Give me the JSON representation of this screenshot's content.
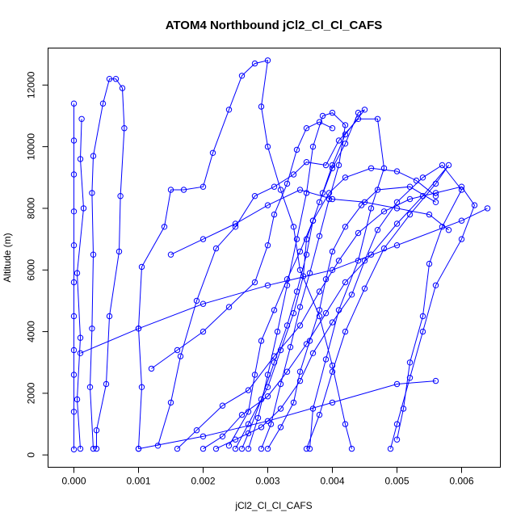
{
  "chart_data": {
    "type": "scatter",
    "title": "ATOM4 Northbound jCl2_Cl_Cl_CAFS",
    "xlabel": "jCl2_Cl_Cl_CAFS",
    "ylabel": "Altitude (m)",
    "xlim": [
      -0.0004,
      0.0066
    ],
    "ylim": [
      -400,
      13200
    ],
    "xticks": [
      0.0,
      0.001,
      0.002,
      0.003,
      0.004,
      0.005,
      0.006
    ],
    "xtick_labels": [
      "0.000",
      "0.001",
      "0.002",
      "0.003",
      "0.004",
      "0.005",
      "0.006"
    ],
    "yticks": [
      0,
      2000,
      4000,
      6000,
      8000,
      10000,
      12000
    ],
    "ytick_labels": [
      "0",
      "2000",
      "4000",
      "6000",
      "8000",
      "10000",
      "12000"
    ],
    "grid": false,
    "color": "#0000ff",
    "series": [
      {
        "points": [
          [
            0.0,
            180
          ],
          [
            0.0,
            1400
          ],
          [
            0.0,
            2600
          ],
          [
            0.0,
            3400
          ],
          [
            0.0,
            4500
          ],
          [
            0.0,
            5600
          ],
          [
            0.0,
            6800
          ],
          [
            0.0,
            7900
          ],
          [
            0.0,
            9100
          ],
          [
            0.0,
            10200
          ],
          [
            0.0,
            11400
          ]
        ]
      },
      {
        "points": [
          [
            0.0001,
            200
          ],
          [
            5e-05,
            1800
          ],
          [
            0.0001,
            3800
          ],
          [
            5e-05,
            5900
          ],
          [
            0.00015,
            8000
          ],
          [
            0.0001,
            9600
          ],
          [
            0.00012,
            10900
          ]
        ]
      },
      {
        "points": [
          [
            0.0003,
            200
          ],
          [
            0.00025,
            2200
          ],
          [
            0.00028,
            4100
          ],
          [
            0.0003,
            6500
          ],
          [
            0.00028,
            8500
          ],
          [
            0.0003,
            9700
          ],
          [
            0.00045,
            11400
          ],
          [
            0.00055,
            12200
          ],
          [
            0.00065,
            12200
          ],
          [
            0.00075,
            11900
          ],
          [
            0.00078,
            10600
          ],
          [
            0.00072,
            8400
          ],
          [
            0.0007,
            6600
          ],
          [
            0.00055,
            4500
          ],
          [
            0.0005,
            2300
          ],
          [
            0.00035,
            800
          ],
          [
            0.00035,
            200
          ]
        ]
      },
      {
        "points": [
          [
            0.001,
            200
          ],
          [
            0.00105,
            2200
          ],
          [
            0.001,
            4100
          ],
          [
            0.00105,
            6100
          ],
          [
            0.0014,
            7400
          ],
          [
            0.0015,
            8600
          ],
          [
            0.0017,
            8600
          ],
          [
            0.002,
            8700
          ],
          [
            0.00215,
            9800
          ],
          [
            0.0024,
            11200
          ],
          [
            0.0026,
            12300
          ],
          [
            0.0028,
            12700
          ],
          [
            0.003,
            12800
          ],
          [
            0.0029,
            11300
          ],
          [
            0.003,
            10000
          ],
          [
            0.0032,
            8600
          ],
          [
            0.0034,
            7400
          ],
          [
            0.0035,
            6000
          ],
          [
            0.0038,
            4500
          ],
          [
            0.004,
            2900
          ],
          [
            0.0042,
            1000
          ],
          [
            0.0043,
            200
          ]
        ]
      },
      {
        "points": [
          [
            0.0013,
            300
          ],
          [
            0.0015,
            1700
          ],
          [
            0.00165,
            3200
          ],
          [
            0.0019,
            5000
          ],
          [
            0.0022,
            6700
          ],
          [
            0.0025,
            7400
          ],
          [
            0.0028,
            8400
          ],
          [
            0.0031,
            8700
          ],
          [
            0.0034,
            9100
          ],
          [
            0.0036,
            9500
          ],
          [
            0.0039,
            9400
          ],
          [
            0.0041,
            10200
          ],
          [
            0.0044,
            10900
          ],
          [
            0.0047,
            10900
          ],
          [
            0.0048,
            9300
          ],
          [
            0.0046,
            8000
          ],
          [
            0.0044,
            6300
          ],
          [
            0.0041,
            4700
          ],
          [
            0.0039,
            3100
          ],
          [
            0.0037,
            1500
          ],
          [
            0.00365,
            200
          ]
        ]
      },
      {
        "points": [
          [
            0.0016,
            200
          ],
          [
            0.0019,
            800
          ],
          [
            0.0023,
            1600
          ],
          [
            0.0027,
            2100
          ],
          [
            0.0031,
            3200
          ],
          [
            0.0035,
            4200
          ],
          [
            0.0038,
            5300
          ],
          [
            0.0041,
            6300
          ],
          [
            0.0044,
            7200
          ],
          [
            0.0048,
            7900
          ],
          [
            0.0052,
            8300
          ],
          [
            0.0056,
            8500
          ],
          [
            0.006,
            8700
          ],
          [
            0.0062,
            8100
          ],
          [
            0.006,
            7000
          ],
          [
            0.0056,
            5500
          ],
          [
            0.0054,
            4000
          ],
          [
            0.0052,
            2500
          ],
          [
            0.005,
            1000
          ],
          [
            0.0049,
            200
          ]
        ]
      },
      {
        "points": [
          [
            0.002,
            200
          ],
          [
            0.0023,
            600
          ],
          [
            0.0026,
            1300
          ],
          [
            0.003,
            1900
          ],
          [
            0.0033,
            2700
          ],
          [
            0.0036,
            3600
          ],
          [
            0.0039,
            4600
          ],
          [
            0.0042,
            5600
          ],
          [
            0.0046,
            6500
          ],
          [
            0.005,
            7500
          ],
          [
            0.0054,
            8400
          ],
          [
            0.0058,
            9400
          ],
          [
            0.0056,
            8800
          ],
          [
            0.0052,
            7800
          ],
          [
            0.0048,
            6700
          ],
          [
            0.0045,
            5400
          ],
          [
            0.0042,
            4000
          ],
          [
            0.004,
            2700
          ],
          [
            0.0038,
            1300
          ],
          [
            0.0036,
            200
          ]
        ]
      },
      {
        "points": [
          [
            0.0022,
            200
          ],
          [
            0.0025,
            500
          ],
          [
            0.0029,
            900
          ],
          [
            0.0032,
            1500
          ],
          [
            0.0035,
            2400
          ],
          [
            0.0037,
            3300
          ],
          [
            0.004,
            4300
          ],
          [
            0.0043,
            5200
          ],
          [
            0.0045,
            6300
          ],
          [
            0.0047,
            7300
          ],
          [
            0.005,
            8200
          ],
          [
            0.0054,
            9000
          ],
          [
            0.0057,
            9400
          ],
          [
            0.006,
            8600
          ],
          [
            0.0057,
            7400
          ],
          [
            0.0055,
            6200
          ],
          [
            0.0054,
            4500
          ],
          [
            0.0052,
            3000
          ],
          [
            0.0051,
            1500
          ],
          [
            0.005,
            500
          ]
        ]
      },
      {
        "points": [
          [
            0.0025,
            200
          ],
          [
            0.0027,
            1000
          ],
          [
            0.003,
            2200
          ],
          [
            0.0032,
            3400
          ],
          [
            0.0034,
            4600
          ],
          [
            0.00355,
            5800
          ],
          [
            0.0036,
            7000
          ],
          [
            0.0038,
            8200
          ],
          [
            0.004,
            9300
          ],
          [
            0.0042,
            10100
          ],
          [
            0.0044,
            11100
          ],
          [
            0.0045,
            11200
          ],
          [
            0.0042,
            10400
          ],
          [
            0.004,
            9400
          ],
          [
            0.00385,
            8500
          ],
          [
            0.0037,
            7600
          ],
          [
            0.0036,
            6500
          ],
          [
            0.00345,
            5300
          ],
          [
            0.0033,
            4200
          ],
          [
            0.0031,
            3000
          ],
          [
            0.0029,
            1800
          ],
          [
            0.0027,
            700
          ],
          [
            0.0026,
            200
          ]
        ]
      },
      {
        "points": [
          [
            0.0027,
            200
          ],
          [
            0.00285,
            1200
          ],
          [
            0.003,
            2600
          ],
          [
            0.00315,
            4000
          ],
          [
            0.0033,
            5500
          ],
          [
            0.00345,
            7000
          ],
          [
            0.0036,
            8500
          ],
          [
            0.0037,
            10000
          ],
          [
            0.00385,
            11000
          ],
          [
            0.004,
            11100
          ],
          [
            0.0042,
            10700
          ],
          [
            0.0041,
            9400
          ],
          [
            0.00395,
            8300
          ],
          [
            0.0038,
            7100
          ],
          [
            0.00365,
            5900
          ],
          [
            0.0035,
            4800
          ],
          [
            0.00335,
            3500
          ],
          [
            0.0032,
            2300
          ],
          [
            0.00305,
            1000
          ],
          [
            0.0029,
            200
          ]
        ]
      },
      {
        "points": [
          [
            0.0001,
            3300
          ],
          [
            0.001,
            4100
          ],
          [
            0.002,
            4900
          ],
          [
            0.003,
            5500
          ],
          [
            0.004,
            6000
          ],
          [
            0.005,
            6800
          ],
          [
            0.006,
            7600
          ],
          [
            0.0064,
            8000
          ]
        ]
      },
      {
        "points": [
          [
            0.001,
            200
          ],
          [
            0.002,
            600
          ],
          [
            0.003,
            1100
          ],
          [
            0.004,
            1700
          ],
          [
            0.005,
            2300
          ],
          [
            0.0056,
            2400
          ]
        ]
      },
      {
        "points": [
          [
            0.0015,
            6500
          ],
          [
            0.002,
            7000
          ],
          [
            0.0025,
            7500
          ],
          [
            0.003,
            8100
          ],
          [
            0.0035,
            8600
          ],
          [
            0.004,
            8300
          ],
          [
            0.0045,
            8200
          ],
          [
            0.005,
            8000
          ],
          [
            0.0055,
            7800
          ],
          [
            0.0058,
            7300
          ]
        ]
      },
      {
        "points": [
          [
            0.0012,
            2800
          ],
          [
            0.0016,
            3400
          ],
          [
            0.002,
            4000
          ],
          [
            0.0024,
            4800
          ],
          [
            0.0028,
            5600
          ],
          [
            0.003,
            6800
          ],
          [
            0.0031,
            7800
          ],
          [
            0.0033,
            8800
          ],
          [
            0.00345,
            9900
          ],
          [
            0.0036,
            10600
          ],
          [
            0.0038,
            10800
          ],
          [
            0.004,
            10600
          ]
        ]
      },
      {
        "points": [
          [
            0.0024,
            300
          ],
          [
            0.0027,
            1400
          ],
          [
            0.0028,
            2600
          ],
          [
            0.0029,
            3700
          ],
          [
            0.0031,
            4700
          ],
          [
            0.0033,
            5700
          ],
          [
            0.0035,
            6600
          ],
          [
            0.0037,
            7600
          ],
          [
            0.00395,
            8500
          ],
          [
            0.0042,
            9000
          ],
          [
            0.0046,
            9300
          ],
          [
            0.005,
            9200
          ],
          [
            0.0053,
            8900
          ],
          [
            0.0056,
            8400
          ]
        ]
      },
      {
        "points": [
          [
            0.003,
            200
          ],
          [
            0.0032,
            900
          ],
          [
            0.0034,
            1700
          ],
          [
            0.0035,
            2700
          ],
          [
            0.00365,
            3700
          ],
          [
            0.0038,
            4700
          ],
          [
            0.0039,
            5700
          ],
          [
            0.004,
            6600
          ],
          [
            0.0042,
            7400
          ],
          [
            0.00445,
            8100
          ],
          [
            0.0047,
            8600
          ],
          [
            0.0052,
            8700
          ],
          [
            0.0056,
            8200
          ]
        ]
      }
    ]
  }
}
